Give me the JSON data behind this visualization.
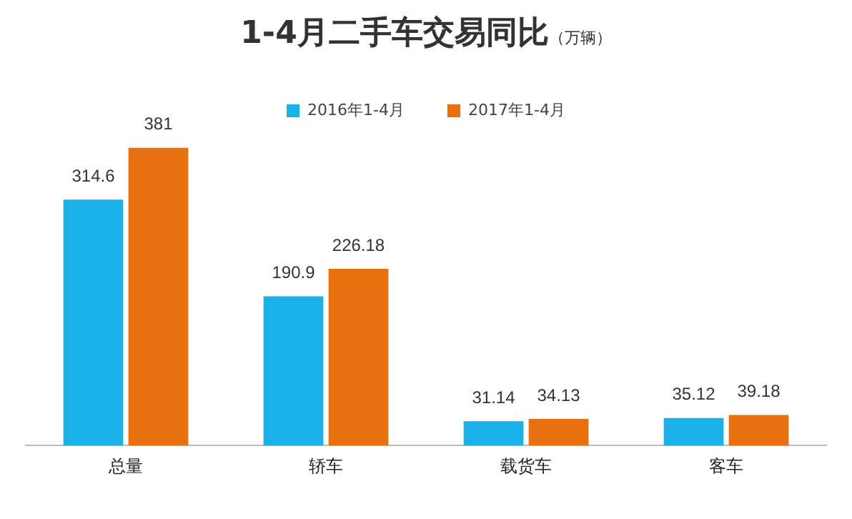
{
  "chart_data": {
    "type": "bar",
    "title": "1-4月二手车交易同比",
    "subtitle": "（万辆）",
    "categories": [
      "总量",
      "轿车",
      "载货车",
      "客车"
    ],
    "series": [
      {
        "name": "2016年1-4月",
        "color": "#1ab0e8",
        "values": [
          314.6,
          190.9,
          31.14,
          35.12
        ]
      },
      {
        "name": "2017年1-4月",
        "color": "#e8700e",
        "values": [
          381,
          226.18,
          34.13,
          39.18
        ]
      }
    ],
    "data_labels": true,
    "legend": "top",
    "grid": false
  }
}
